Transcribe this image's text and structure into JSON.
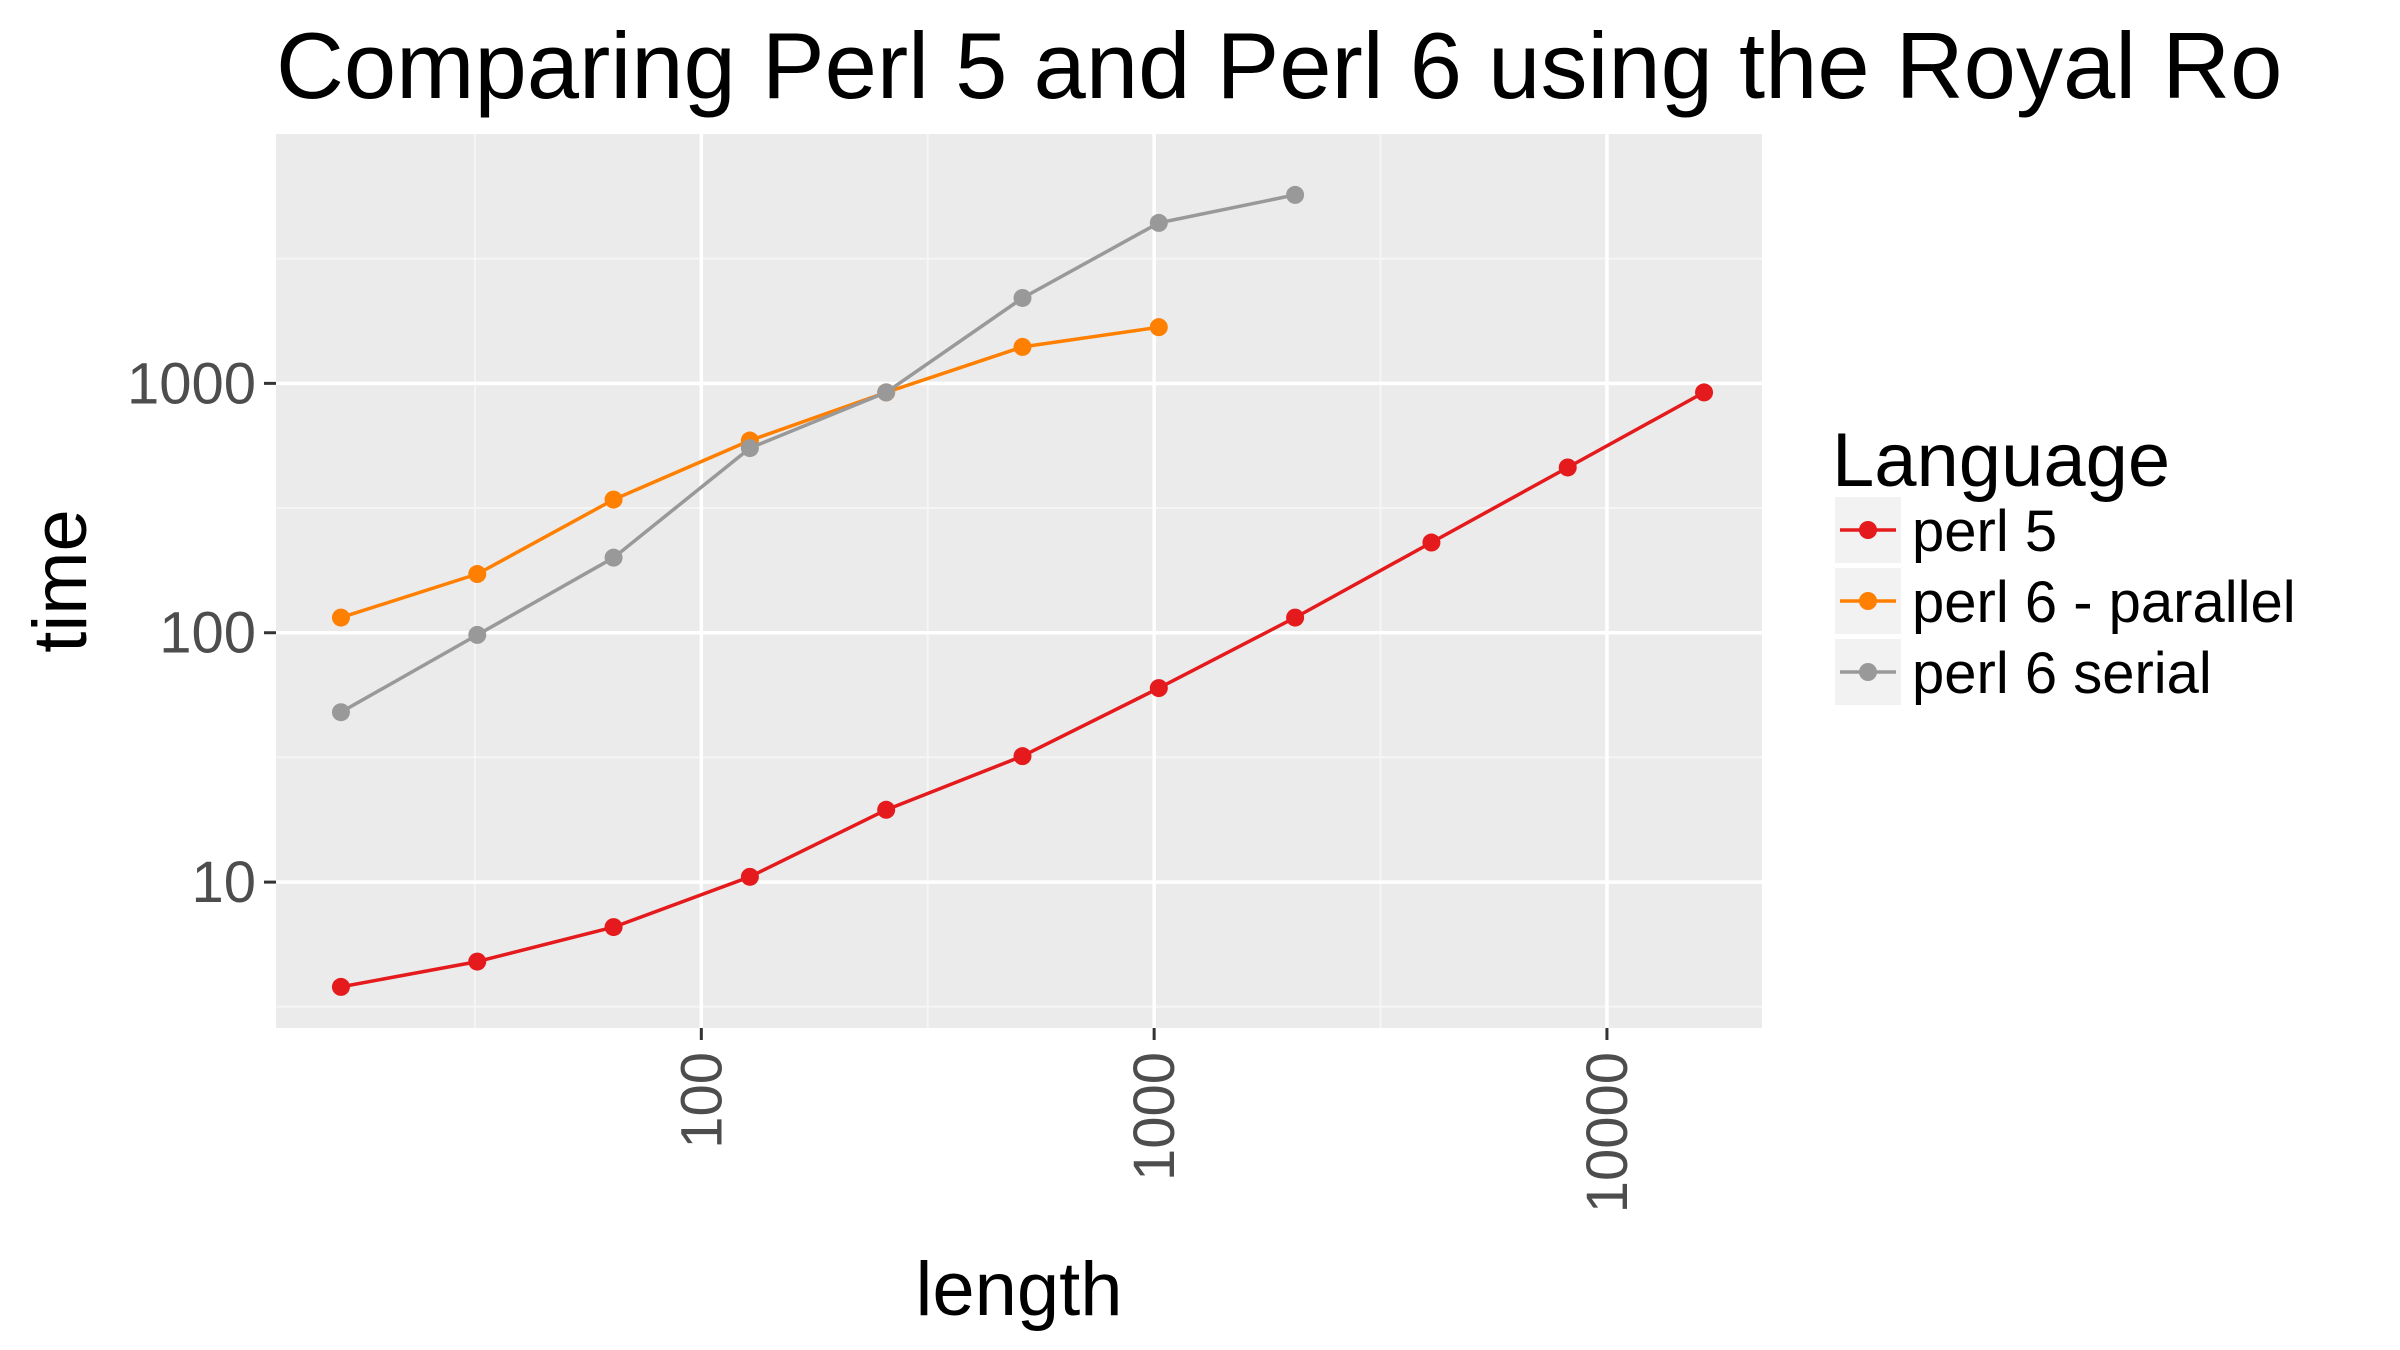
{
  "chart_data": {
    "type": "line",
    "title": "Comparing Perl 5 and Perl 6 using the Royal Ro",
    "xlabel": "length",
    "ylabel": "time",
    "x_scale": "log10",
    "y_scale": "log10",
    "xlim": [
      11.5,
      22000
    ],
    "ylim": [
      2.6,
      10000
    ],
    "x_ticks": [
      100,
      1000,
      10000
    ],
    "x_tick_labels": [
      "100",
      "1000",
      "10000"
    ],
    "y_ticks": [
      10,
      100,
      1000
    ],
    "y_tick_labels": [
      "10",
      "100",
      "1000"
    ],
    "grid": true,
    "legend": {
      "title": "Language",
      "position": "right"
    },
    "series": [
      {
        "name": "perl 5",
        "color": "#e41a1c",
        "x": [
          16,
          32,
          64,
          128,
          256,
          512,
          1024,
          2048,
          4096,
          8192,
          16384
        ],
        "y": [
          3.8,
          4.8,
          6.6,
          10.5,
          19.5,
          32,
          60,
          115,
          230,
          460,
          920
        ]
      },
      {
        "name": "perl 6 - parallel",
        "color": "#ff7f00",
        "x": [
          16,
          32,
          64,
          128,
          256,
          512,
          1024
        ],
        "y": [
          115,
          172,
          342,
          590,
          920,
          1400,
          1680
        ]
      },
      {
        "name": "perl 6 serial",
        "color": "#999999",
        "x": [
          16,
          32,
          64,
          128,
          256,
          512,
          1024,
          2048
        ],
        "y": [
          48,
          98,
          200,
          550,
          920,
          2200,
          4400,
          5700
        ]
      }
    ]
  },
  "colors": {
    "panel_background": "#ebebeb",
    "grid_major": "#ffffff",
    "grid_minor": "#f5f5f5",
    "tick_text": "#4d4d4d"
  }
}
